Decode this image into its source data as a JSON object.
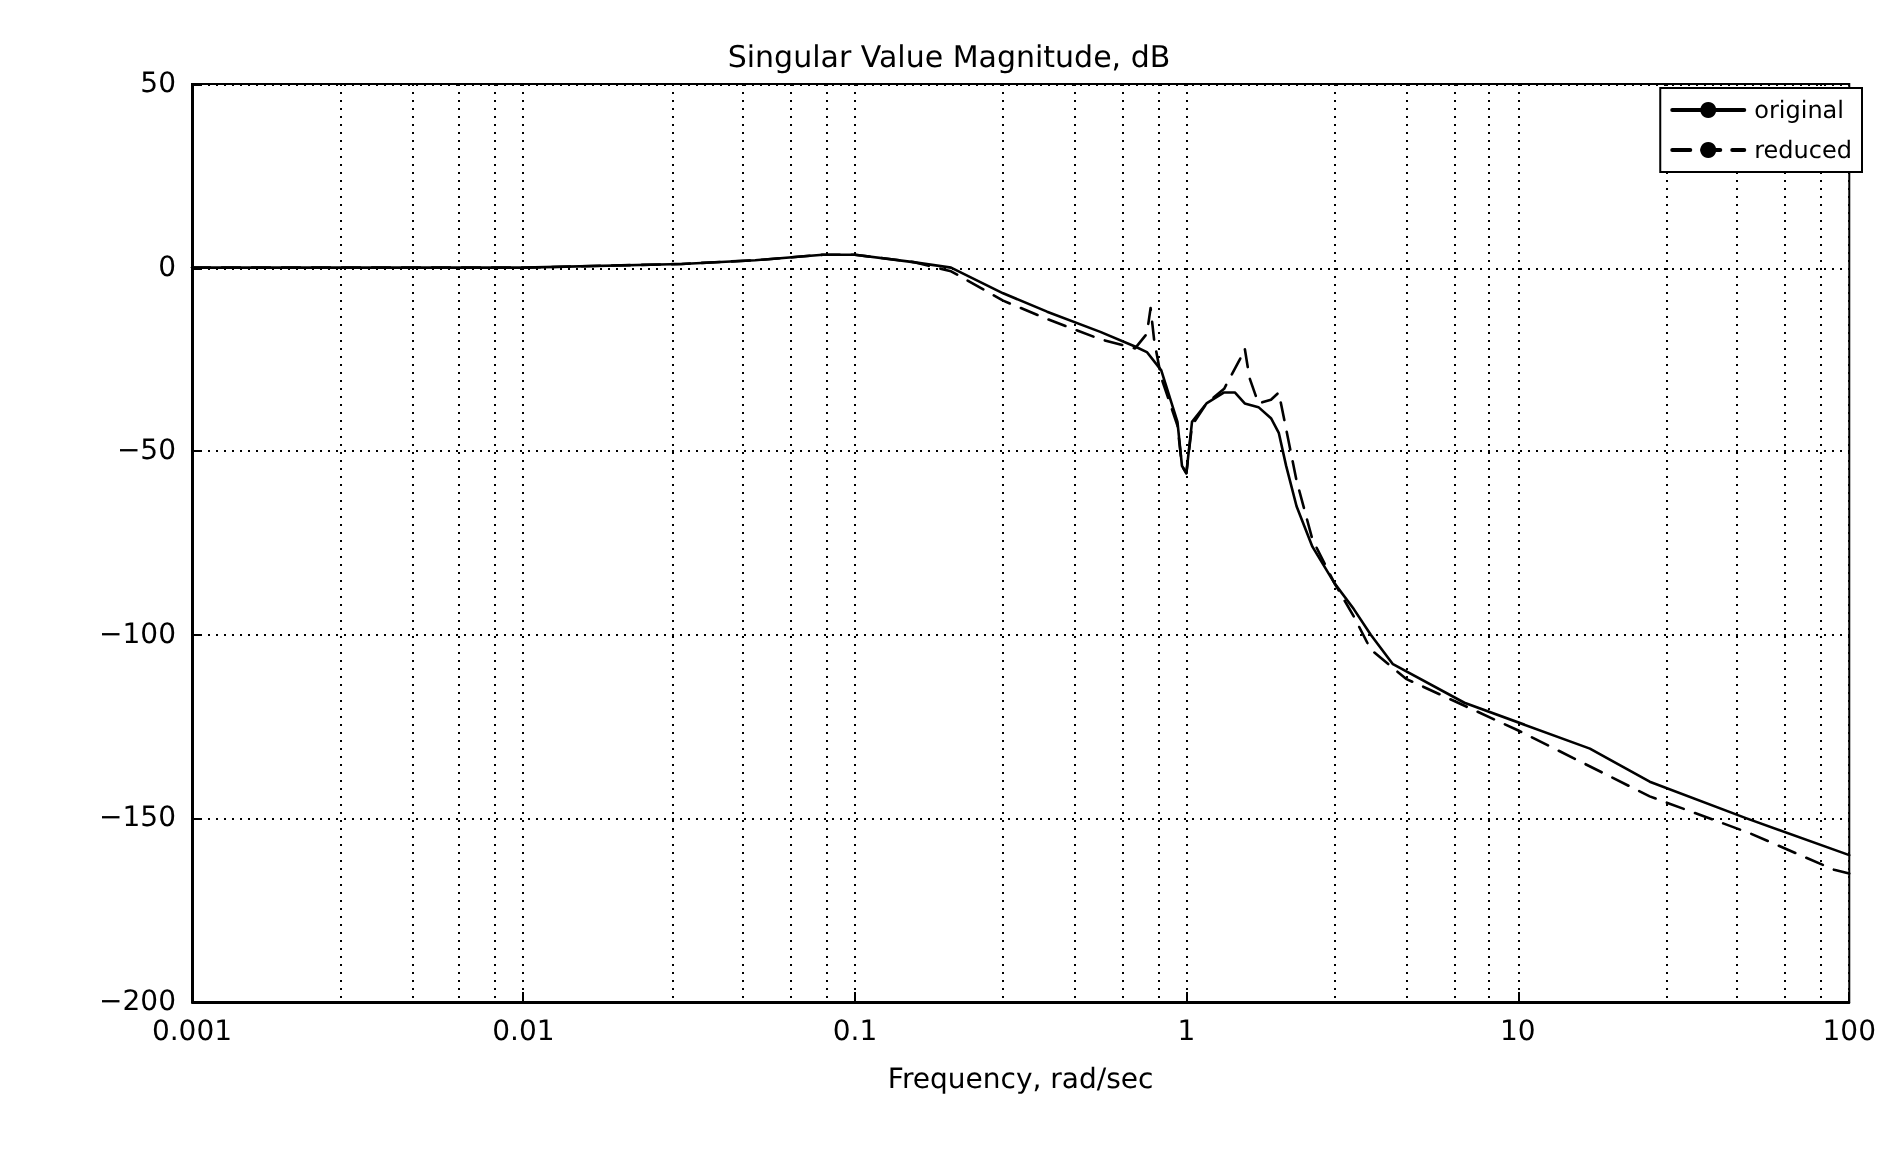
{
  "chart_data": {
    "type": "line",
    "title": "Singular Value Magnitude, dB",
    "xlabel": "Frequency, rad/sec",
    "log": "x",
    "xlim": [
      0.001,
      100
    ],
    "xticks": [
      0.001,
      0.01,
      0.1,
      1,
      10,
      100
    ],
    "ylim": [
      -200,
      50
    ],
    "yticks": [
      -200,
      -150,
      -100,
      -50,
      0,
      50
    ],
    "grid": true,
    "legend": "top right",
    "series": [
      {
        "name": "original",
        "color": "#000000",
        "line_style": "solid",
        "x": [
          0.001,
          0.01,
          0.03,
          0.05,
          0.08,
          0.1,
          0.15,
          0.195,
          0.28,
          0.38,
          0.55,
          0.7,
          0.76,
          0.84,
          0.94,
          0.97,
          1.0,
          1.04,
          1.15,
          1.3,
          1.4,
          1.5,
          1.65,
          1.8,
          1.9,
          2.0,
          2.15,
          2.4,
          2.8,
          3.2,
          3.6,
          4.2,
          6.9,
          16.5,
          25,
          49,
          100
        ],
        "values": [
          0,
          0,
          1,
          2,
          3.5,
          3.5,
          1.5,
          0,
          -7,
          -12,
          -17.5,
          -21.5,
          -23,
          -28,
          -42,
          -54,
          -56,
          -42,
          -37,
          -34,
          -34,
          -37,
          -38,
          -41,
          -45,
          -54,
          -65,
          -76,
          -86,
          -93,
          -100,
          -108,
          -118.5,
          -131,
          -140,
          -150,
          -160
        ]
      },
      {
        "name": "reduced",
        "color": "#000000",
        "line_style": "dashed",
        "x": [
          0.001,
          0.01,
          0.03,
          0.05,
          0.08,
          0.1,
          0.15,
          0.195,
          0.28,
          0.38,
          0.55,
          0.7,
          0.76,
          0.78,
          0.8,
          0.84,
          0.94,
          0.97,
          1.0,
          1.04,
          1.15,
          1.3,
          1.45,
          1.5,
          1.55,
          1.65,
          1.8,
          1.9,
          2.0,
          2.15,
          2.4,
          2.8,
          3.2,
          3.6,
          4.6,
          10,
          25,
          50,
          90,
          100
        ],
        "values": [
          0,
          0,
          1,
          2,
          3.5,
          3.5,
          1.5,
          -1,
          -9,
          -14,
          -19.5,
          -22,
          -18,
          -11,
          -20,
          -30,
          -43,
          -54,
          -56,
          -43,
          -37,
          -33,
          -25,
          -22,
          -30,
          -37,
          -36,
          -34,
          -44,
          -58,
          -74,
          -86,
          -95,
          -104,
          -112,
          -126,
          -144,
          -154,
          -164,
          -165
        ]
      }
    ]
  }
}
